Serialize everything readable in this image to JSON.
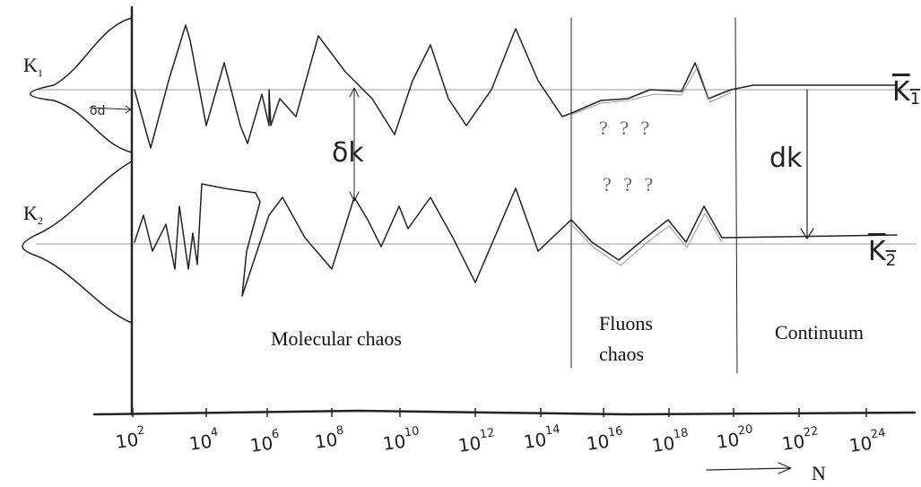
{
  "left_labels": {
    "k1": {
      "base": "K",
      "sub": "1"
    },
    "k2": {
      "base": "K",
      "sub": "2"
    }
  },
  "right_labels": {
    "k1_mean": {
      "base": "K",
      "sub": "1"
    },
    "k2_mean": {
      "base": "K",
      "sub": "2"
    }
  },
  "annotations": {
    "delta_d": "δd",
    "delta_k": "δk",
    "d_k": "dk",
    "question_top": "? ? ?",
    "question_bottom": "? ? ?"
  },
  "regions": [
    [
      "Molecular chaos"
    ],
    [
      "Fluons",
      "chaos"
    ],
    [
      "Continuum"
    ]
  ],
  "axis": {
    "ticks": [
      {
        "base": "10",
        "exp": "2"
      },
      {
        "base": "10",
        "exp": "4"
      },
      {
        "base": "10",
        "exp": "6"
      },
      {
        "base": "10",
        "exp": "8"
      },
      {
        "base": "10",
        "exp": "10"
      },
      {
        "base": "10",
        "exp": "12"
      },
      {
        "base": "10",
        "exp": "14"
      },
      {
        "base": "10",
        "exp": "16"
      },
      {
        "base": "10",
        "exp": "18"
      },
      {
        "base": "10",
        "exp": "20"
      },
      {
        "base": "10",
        "exp": "22"
      },
      {
        "base": "10",
        "exp": "24"
      }
    ],
    "label": "N"
  }
}
